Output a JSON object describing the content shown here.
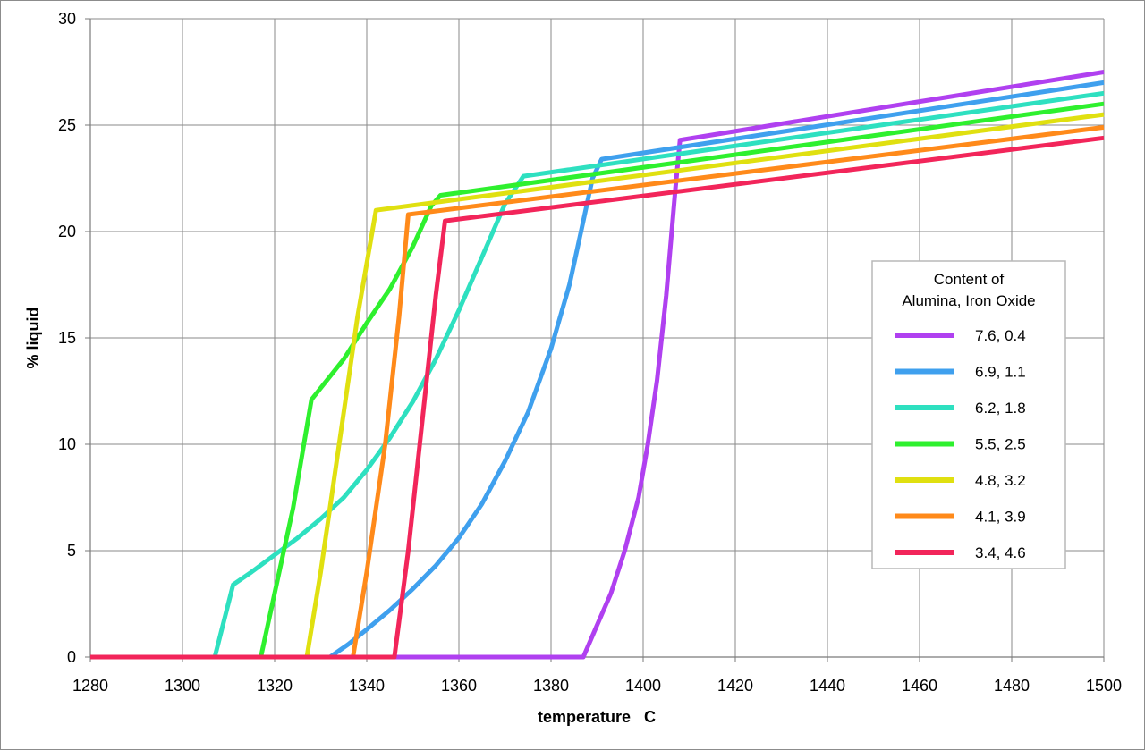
{
  "chart_data": {
    "type": "line",
    "xlabel": "temperature   C",
    "ylabel": "% liquid",
    "xlim": [
      1280,
      1500
    ],
    "ylim": [
      0,
      30
    ],
    "x_ticks": [
      1280,
      1300,
      1320,
      1340,
      1360,
      1380,
      1400,
      1420,
      1440,
      1460,
      1480,
      1500
    ],
    "y_ticks": [
      0,
      5,
      10,
      15,
      20,
      25,
      30
    ],
    "grid": true,
    "legend": {
      "title_line1": "Content of",
      "title_line2": "Alumina, Iron Oxide",
      "placement": "right"
    },
    "series": [
      {
        "name": "7.6, 0.4",
        "color": "#b040f0",
        "points": [
          [
            1280,
            0
          ],
          [
            1387,
            0
          ],
          [
            1390,
            1.5
          ],
          [
            1393,
            3
          ],
          [
            1396,
            5
          ],
          [
            1399,
            7.5
          ],
          [
            1401,
            10
          ],
          [
            1403,
            13
          ],
          [
            1405,
            17
          ],
          [
            1407,
            22
          ],
          [
            1408,
            24.3
          ],
          [
            1500,
            27.5
          ]
        ]
      },
      {
        "name": "6.9, 1.1",
        "color": "#3fa0ee",
        "points": [
          [
            1280,
            0
          ],
          [
            1332,
            0
          ],
          [
            1336,
            0.6
          ],
          [
            1340,
            1.3
          ],
          [
            1345,
            2.2
          ],
          [
            1350,
            3.2
          ],
          [
            1355,
            4.3
          ],
          [
            1360,
            5.6
          ],
          [
            1365,
            7.2
          ],
          [
            1370,
            9.2
          ],
          [
            1375,
            11.5
          ],
          [
            1380,
            14.5
          ],
          [
            1384,
            17.5
          ],
          [
            1387,
            20.5
          ],
          [
            1389,
            22.5
          ],
          [
            1391,
            23.4
          ],
          [
            1500,
            27
          ]
        ]
      },
      {
        "name": "6.2, 1.8",
        "color": "#2ee0c0",
        "points": [
          [
            1280,
            0
          ],
          [
            1307,
            0
          ],
          [
            1311,
            3.4
          ],
          [
            1315,
            4
          ],
          [
            1320,
            4.8
          ],
          [
            1325,
            5.6
          ],
          [
            1330,
            6.5
          ],
          [
            1335,
            7.5
          ],
          [
            1340,
            8.8
          ],
          [
            1345,
            10.3
          ],
          [
            1350,
            12
          ],
          [
            1355,
            14
          ],
          [
            1360,
            16.3
          ],
          [
            1365,
            18.8
          ],
          [
            1370,
            21.3
          ],
          [
            1374,
            22.6
          ],
          [
            1500,
            26.5
          ]
        ]
      },
      {
        "name": "5.5, 2.5",
        "color": "#2ef02e",
        "points": [
          [
            1280,
            0
          ],
          [
            1317,
            0
          ],
          [
            1324,
            7
          ],
          [
            1328,
            12.1
          ],
          [
            1335,
            14
          ],
          [
            1340,
            15.7
          ],
          [
            1345,
            17.3
          ],
          [
            1350,
            19.3
          ],
          [
            1354,
            21.2
          ],
          [
            1356,
            21.7
          ],
          [
            1500,
            26
          ]
        ]
      },
      {
        "name": "4.8, 3.2",
        "color": "#e0e010",
        "points": [
          [
            1280,
            0
          ],
          [
            1327,
            0
          ],
          [
            1330,
            4
          ],
          [
            1334,
            10
          ],
          [
            1338,
            16
          ],
          [
            1342,
            21
          ],
          [
            1500,
            25.5
          ]
        ]
      },
      {
        "name": "4.1, 3.9",
        "color": "#ff8a1a",
        "points": [
          [
            1280,
            0
          ],
          [
            1337,
            0
          ],
          [
            1340,
            4
          ],
          [
            1344,
            10
          ],
          [
            1347,
            16
          ],
          [
            1349,
            20.8
          ],
          [
            1500,
            24.9
          ]
        ]
      },
      {
        "name": "3.4, 4.6",
        "color": "#f2255a",
        "points": [
          [
            1280,
            0
          ],
          [
            1346,
            0
          ],
          [
            1349,
            5
          ],
          [
            1352,
            11
          ],
          [
            1355,
            17
          ],
          [
            1357,
            20.5
          ],
          [
            1500,
            24.4
          ]
        ]
      }
    ]
  }
}
